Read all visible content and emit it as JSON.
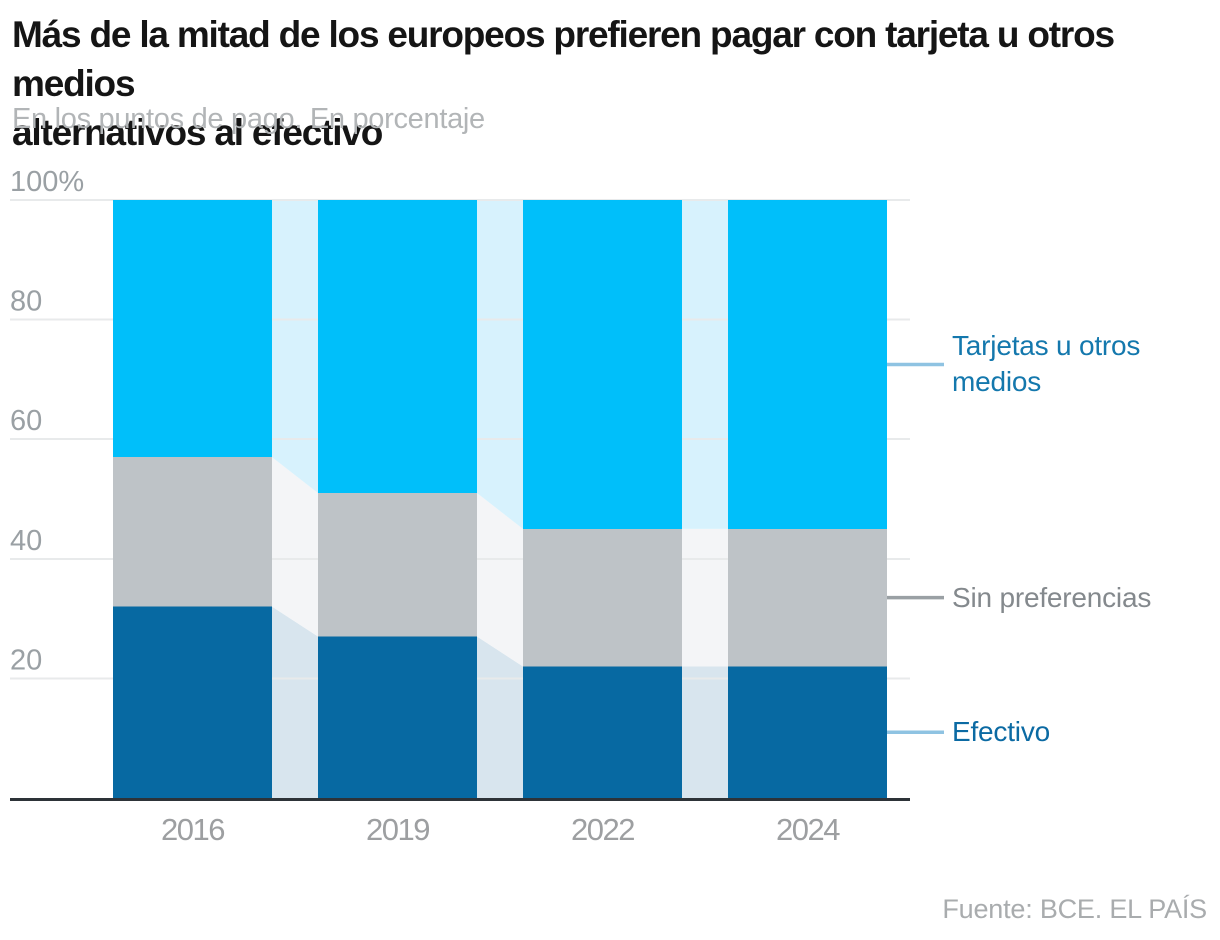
{
  "header": {
    "title_lines": [
      "Más de la mitad de los europeos prefieren pagar con tarjeta u otros medios",
      "alternativos al efectivo"
    ],
    "subtitle": "En los puntos de pago. En porcentaje"
  },
  "footer": {
    "source": "Fuente: BCE. EL PAÍS"
  },
  "chart_data": {
    "type": "bar",
    "stacked": true,
    "percent_stacked": true,
    "title": "Más de la mitad de los europeos prefieren pagar con tarjeta u otros medios alternativos al efectivo",
    "subtitle": "En los puntos de pago. En porcentaje",
    "categories": [
      "2016",
      "2019",
      "2022",
      "2024"
    ],
    "series": [
      {
        "name": "Efectivo",
        "values": [
          32,
          27,
          22,
          22
        ],
        "color": "#0769a2",
        "connector_color": "#d8e5ee",
        "label_color": "#0b6aa3",
        "leader_color": "#8fc3e2"
      },
      {
        "name": "Sin preferencias",
        "values": [
          25,
          24,
          23,
          23
        ],
        "color": "#bec3c7",
        "connector_color": "#f4f5f7",
        "label_color": "#84898d",
        "leader_color": "#9aa0a4"
      },
      {
        "name": "Tarjetas u otros medios",
        "values": [
          43,
          49,
          55,
          55
        ],
        "color": "#00bffa",
        "connector_color": "#d7f2fd",
        "label_color": "#1478ad",
        "leader_color": "#8fc3e2"
      }
    ],
    "yticks": [
      {
        "value": 100,
        "label": "100%"
      },
      {
        "value": 80,
        "label": "80"
      },
      {
        "value": 60,
        "label": "60"
      },
      {
        "value": 40,
        "label": "40"
      },
      {
        "value": 20,
        "label": "20"
      }
    ],
    "ylim": [
      0,
      100
    ],
    "grid": true,
    "legend_position": "right"
  },
  "colors": {
    "background": "#ffffff",
    "grid": "#e8eaeb",
    "axis": "#2d3338",
    "y_tick_text": "#9aa0a4",
    "x_tick_text": "#9d9fa1",
    "title_text": "#151515",
    "subtitle_text": "#b2b5b7",
    "source_text": "#a9acae"
  }
}
